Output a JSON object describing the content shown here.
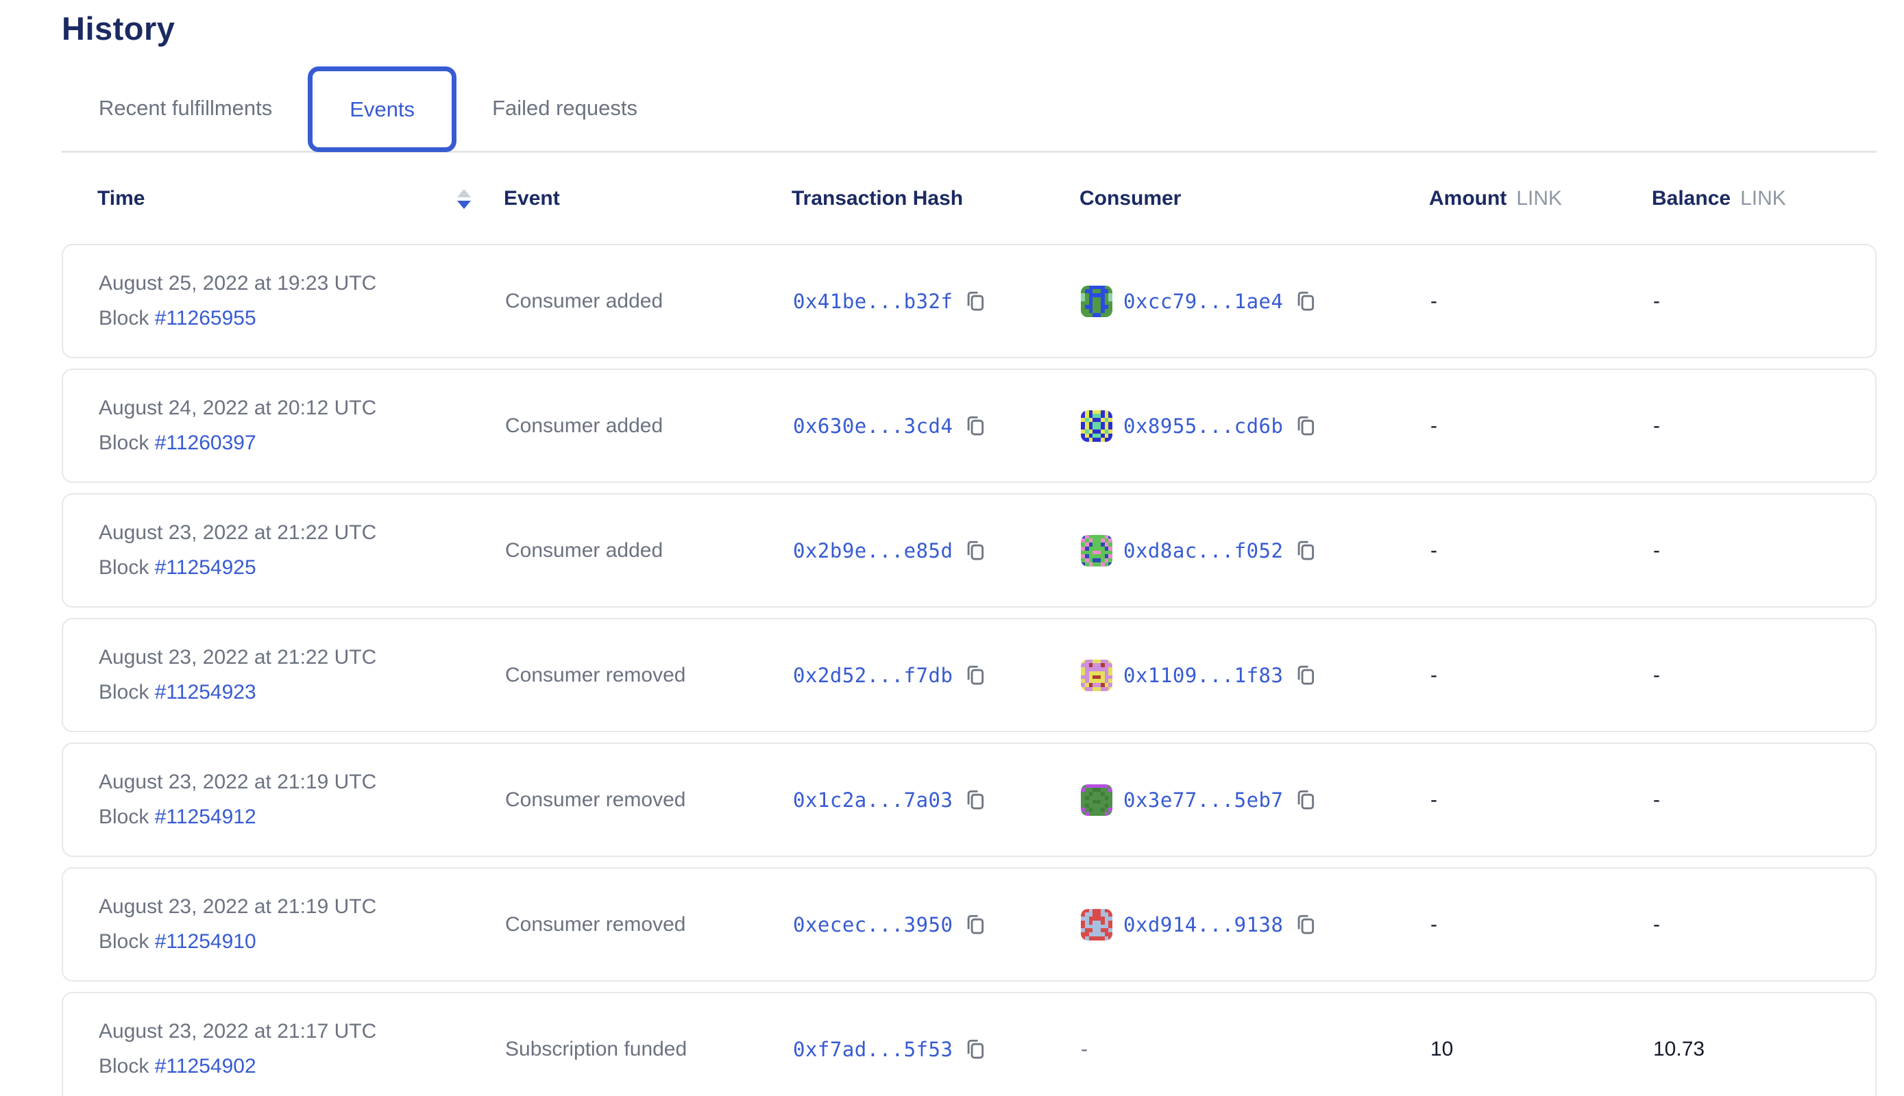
{
  "page": {
    "title": "History"
  },
  "tabs": [
    {
      "label": "Recent fulfillments",
      "active": false
    },
    {
      "label": "Events",
      "active": true
    },
    {
      "label": "Failed requests",
      "active": false
    }
  ],
  "colors": {
    "accent_blue": "#375bd2",
    "heading_navy": "#1b2a63",
    "body_gray": "#6b7280",
    "unit_gray": "#9097a2",
    "card_border": "#e7e8ec"
  },
  "table": {
    "columns": {
      "time": "Time",
      "event": "Event",
      "tx_hash": "Transaction Hash",
      "consumer": "Consumer",
      "amount": "Amount",
      "amount_unit": "LINK",
      "balance": "Balance",
      "balance_unit": "LINK"
    },
    "sort": {
      "column": "time",
      "direction": "descending"
    },
    "block_label": "Block",
    "rows": [
      {
        "time": "August 25, 2022 at 19:23 UTC",
        "block": "#11265955",
        "event": "Consumer added",
        "tx_hash": "0x41be...b32f",
        "consumer": "0xcc79...1ae4",
        "amount": "-",
        "balance": "-",
        "avatar": 0
      },
      {
        "time": "August 24, 2022 at 20:12 UTC",
        "block": "#11260397",
        "event": "Consumer added",
        "tx_hash": "0x630e...3cd4",
        "consumer": "0x8955...cd6b",
        "amount": "-",
        "balance": "-",
        "avatar": 1
      },
      {
        "time": "August 23, 2022 at 21:22 UTC",
        "block": "#11254925",
        "event": "Consumer added",
        "tx_hash": "0x2b9e...e85d",
        "consumer": "0xd8ac...f052",
        "amount": "-",
        "balance": "-",
        "avatar": 2
      },
      {
        "time": "August 23, 2022 at 21:22 UTC",
        "block": "#11254923",
        "event": "Consumer removed",
        "tx_hash": "0x2d52...f7db",
        "consumer": "0x1109...1f83",
        "amount": "-",
        "balance": "-",
        "avatar": 3
      },
      {
        "time": "August 23, 2022 at 21:19 UTC",
        "block": "#11254912",
        "event": "Consumer removed",
        "tx_hash": "0x1c2a...7a03",
        "consumer": "0x3e77...5eb7",
        "amount": "-",
        "balance": "-",
        "avatar": 4
      },
      {
        "time": "August 23, 2022 at 21:19 UTC",
        "block": "#11254910",
        "event": "Consumer removed",
        "tx_hash": "0xecec...3950",
        "consumer": "0xd914...9138",
        "amount": "-",
        "balance": "-",
        "avatar": 5
      },
      {
        "time": "August 23, 2022 at 21:17 UTC",
        "block": "#11254902",
        "event": "Subscription funded",
        "tx_hash": "0xf7ad...5f53",
        "consumer": "-",
        "amount": "10",
        "balance": "10.73",
        "avatar": null
      }
    ]
  },
  "avatars": [
    {
      "palette": {
        "g": "#4f9a43",
        "b": "#2d4be0",
        "t": "#8fd3ab"
      },
      "grid": [
        "ggbbbbgg",
        "gbbggbbg",
        "tgbbbbgt",
        "tgbggbgt",
        "ggbggbgg",
        "gbbggbbg",
        "ggbggbgg",
        "gggbbggg"
      ]
    },
    {
      "palette": {
        "b": "#2b2fd4",
        "y": "#e9e553",
        "t": "#66d9a0"
      },
      "grid": [
        "bybyybyb",
        "bybttbyb",
        "ytybbyty",
        "bybttbyb",
        "bybttbyb",
        "ytybbyty",
        "bybttbyb",
        "bbybbybb"
      ]
    },
    {
      "palette": {
        "g": "#5ec455",
        "p": "#ef8ccd",
        "n": "#2c49b8"
      },
      "grid": [
        "npggggpn",
        "pgpggpgp",
        "gpnggnpg",
        "pnggggnp",
        "gggppggg",
        "pnggggnp",
        "gpgnngpg",
        "ngpggpgn"
      ]
    },
    {
      "palette": {
        "p": "#cf90dc",
        "y": "#e5e05c",
        "r": "#b13a30"
      },
      "grid": [
        "yppyyppy",
        "pprpprpp",
        "yppppppy",
        "ypyyyypy",
        "ppyrrypp",
        "ypyyyypy",
        "pyrppryp",
        "yppyyppy"
      ]
    },
    {
      "palette": {
        "g": "#4e9147",
        "m": "#b750e3",
        "d": "#417c3c"
      },
      "grid": [
        "gmmmmmmg",
        "mggddggm",
        "ggdggdgg",
        "gdggggdg",
        "gggddggg",
        "gdggggdg",
        "mgdggdgm",
        "gmggggmg"
      ]
    },
    {
      "palette": {
        "r": "#d84b49",
        "l": "#a9bfdf"
      },
      "grid": [
        "rrlrrlrr",
        "rllrrllr",
        "llrrrrll",
        "rlrllrlr",
        "rllllllr",
        "lrrllrrl",
        "rrllllrr",
        "rlrrrrlr"
      ]
    }
  ]
}
